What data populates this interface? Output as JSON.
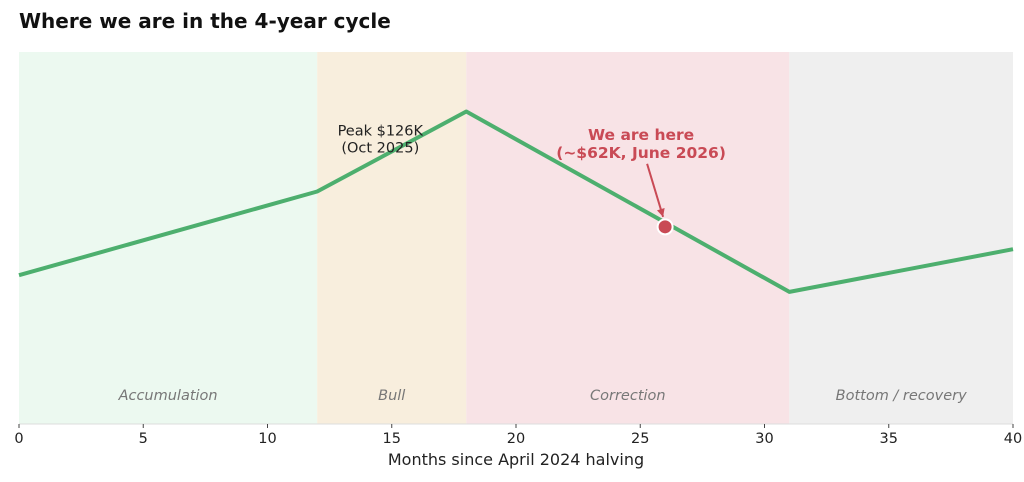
{
  "chart_data": {
    "type": "line",
    "title": "Where we are in the 4-year cycle",
    "xlabel": "Months since April 2024 halving",
    "ylabel": "",
    "xlim": [
      0,
      40
    ],
    "ylim": [
      0,
      100
    ],
    "xticks": [
      0,
      5,
      10,
      15,
      20,
      25,
      30,
      35,
      40
    ],
    "series": [
      {
        "x": [
          0,
          12,
          18,
          31,
          40
        ],
        "y": [
          40,
          62.5,
          84,
          35.5,
          47
        ],
        "color": "#4daf6e"
      }
    ],
    "phases": [
      {
        "label": "Accumulation",
        "x0": 0,
        "x1": 12,
        "color": "#ecf9f0"
      },
      {
        "label": "Bull",
        "x0": 12,
        "x1": 18,
        "color": "#f8eedd"
      },
      {
        "label": "Correction",
        "x0": 18,
        "x1": 31,
        "color": "#f8e3e6"
      },
      {
        "label": "Bottom / recovery",
        "x0": 31,
        "x1": 40,
        "color": "#efefef"
      }
    ],
    "annotations": {
      "peak": {
        "lines": [
          "Peak $126K",
          "(Oct 2025)"
        ],
        "x": 18,
        "y": 84
      },
      "current": {
        "lines": [
          "We are here",
          "(~$62K, June 2026)"
        ],
        "x": 26,
        "y": 53,
        "color": "#c94a55"
      }
    },
    "grid": false,
    "legend": "none"
  }
}
